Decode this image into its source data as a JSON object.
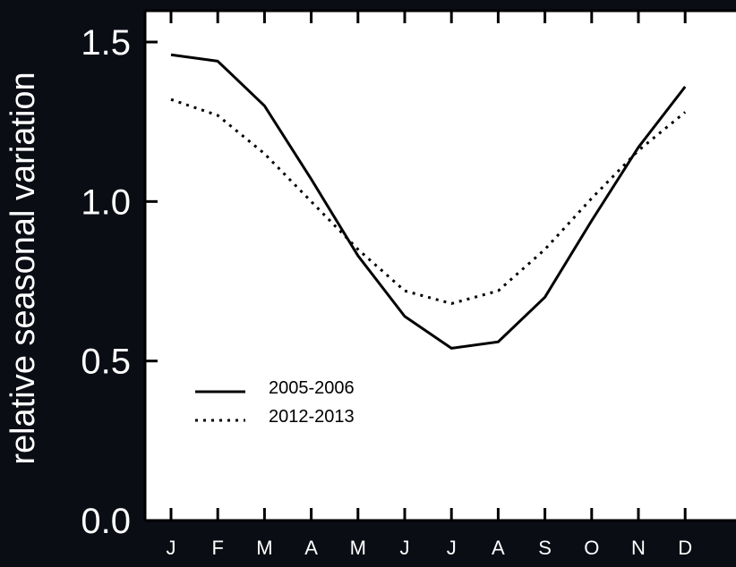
{
  "chart_data": {
    "type": "line",
    "title": "",
    "xlabel": "",
    "ylabel": "relative seasonal variation",
    "categories": [
      "J",
      "F",
      "M",
      "A",
      "M",
      "J",
      "J",
      "A",
      "S",
      "O",
      "N",
      "D"
    ],
    "ylim": [
      0.0,
      1.6
    ],
    "yticks": [
      "0.0",
      "0.5",
      "1.0",
      "1.5"
    ],
    "grid": false,
    "legend_placement": "bottom-left",
    "series": [
      {
        "name": "2005-2006",
        "style": "solid",
        "values": [
          1.46,
          1.44,
          1.3,
          1.07,
          0.83,
          0.64,
          0.54,
          0.56,
          0.7,
          0.94,
          1.17,
          1.36
        ]
      },
      {
        "name": "2012-2013",
        "style": "dotted",
        "values": [
          1.32,
          1.27,
          1.15,
          1.0,
          0.85,
          0.72,
          0.68,
          0.72,
          0.85,
          1.01,
          1.16,
          1.28
        ]
      }
    ],
    "colors": {
      "background": "#0a0d14",
      "plot_area": "#ffffff",
      "lines": "#000000",
      "text": "#ffffff"
    }
  }
}
